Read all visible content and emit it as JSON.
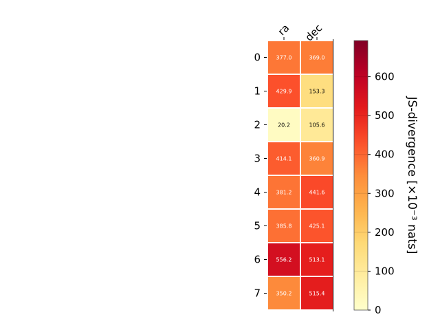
{
  "chart_data": {
    "type": "heatmap",
    "columns": [
      "ra",
      "dec"
    ],
    "rows": [
      "0",
      "1",
      "2",
      "3",
      "4",
      "5",
      "6",
      "7"
    ],
    "values": [
      [
        377.0,
        369.0
      ],
      [
        429.9,
        153.3
      ],
      [
        20.2,
        105.6
      ],
      [
        414.1,
        360.9
      ],
      [
        381.2,
        441.6
      ],
      [
        385.8,
        425.1
      ],
      [
        556.2,
        513.1
      ],
      [
        350.2,
        515.4
      ]
    ],
    "value_labels": [
      [
        "377.0",
        "369.0"
      ],
      [
        "429.9",
        "153.3"
      ],
      [
        "20.2",
        "105.6"
      ],
      [
        "414.1",
        "360.9"
      ],
      [
        "381.2",
        "441.6"
      ],
      [
        "385.8",
        "425.1"
      ],
      [
        "556.2",
        "513.1"
      ],
      [
        "350.2",
        "515.4"
      ]
    ],
    "colormap": "YlOrRd",
    "colorbar": {
      "label": "JS-divergence [×10⁻³ nats]",
      "range": [
        0,
        693
      ],
      "ticks": [
        0,
        100,
        200,
        300,
        400,
        500,
        600
      ],
      "tick_labels": [
        "0",
        "100",
        "200",
        "300",
        "400",
        "500",
        "600"
      ]
    }
  }
}
